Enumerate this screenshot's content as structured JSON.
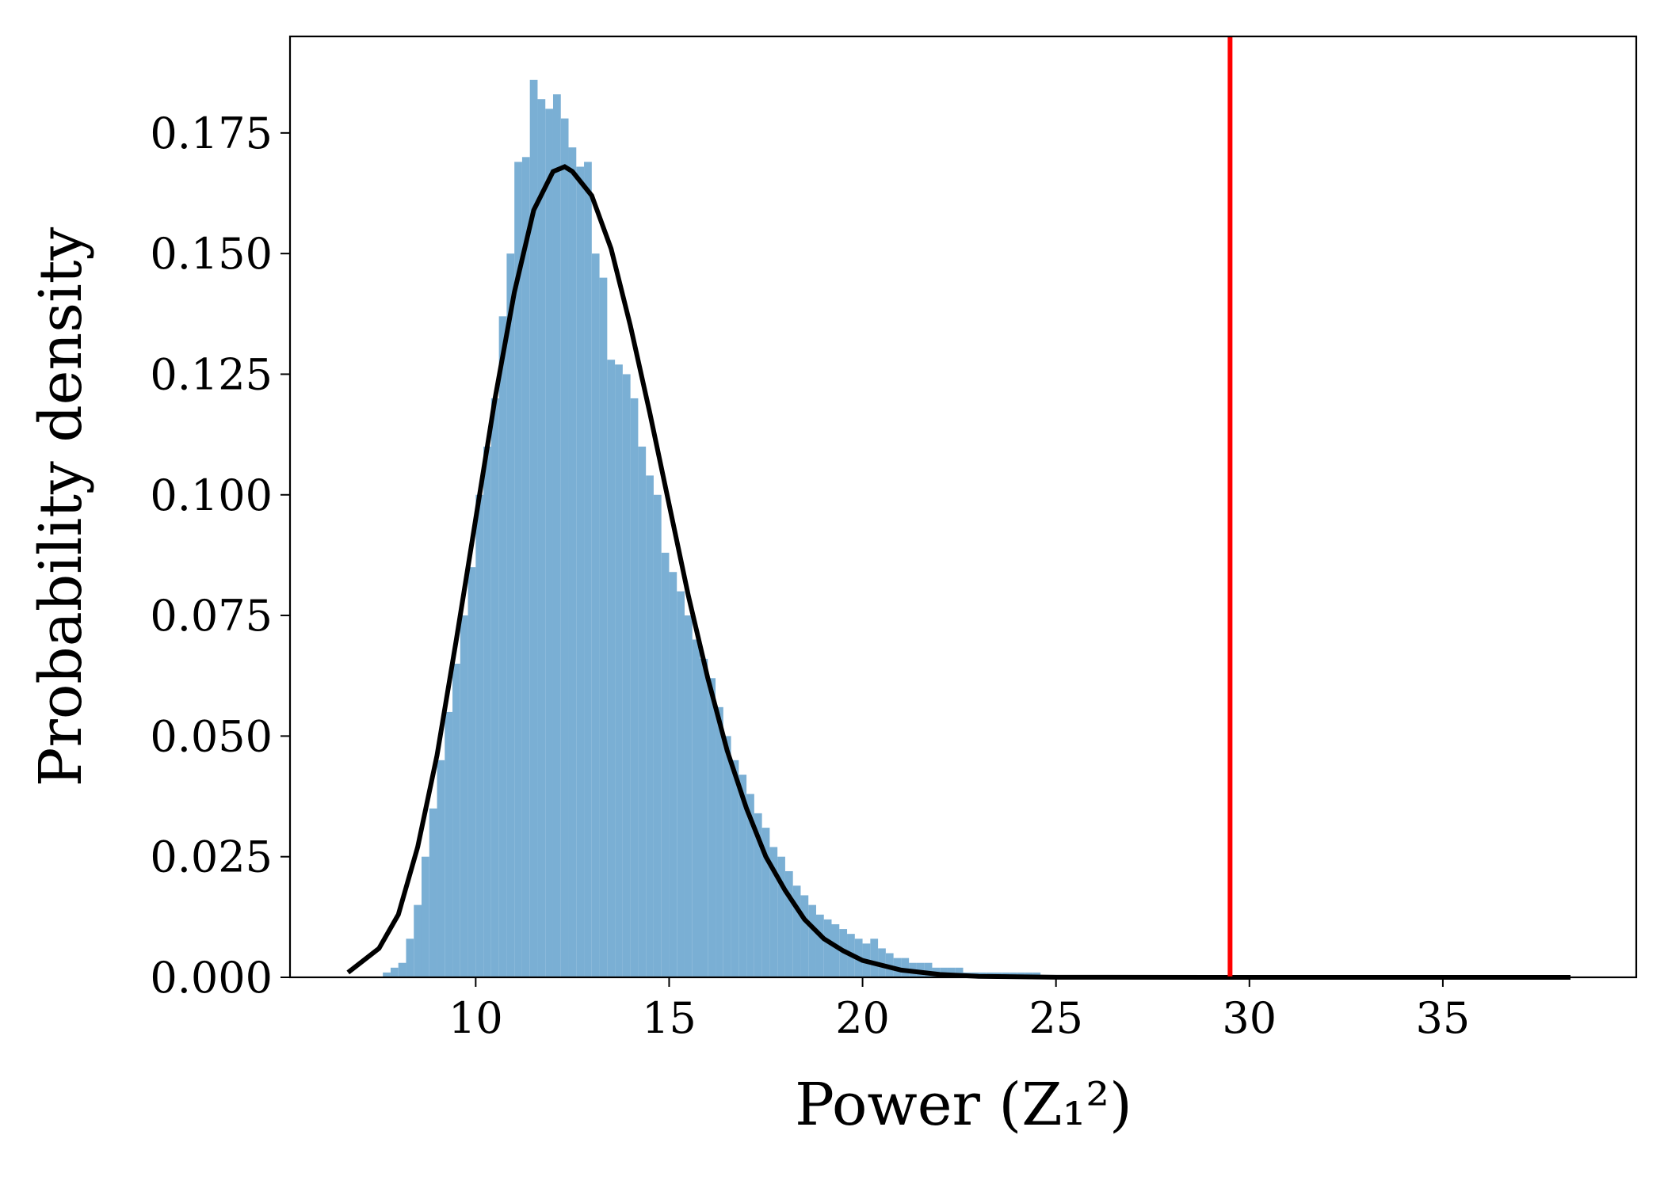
{
  "chart_data": {
    "type": "histogram",
    "xlabel": "Power (Z₁²)",
    "ylabel": "Probability density",
    "bins": [
      7.6,
      7.8,
      8.0,
      8.2,
      8.4,
      8.6,
      8.8,
      9.0,
      9.2,
      9.4,
      9.6,
      9.8,
      10.0,
      10.2,
      10.4,
      10.6,
      10.8,
      11.0,
      11.2,
      11.4,
      11.6,
      11.8,
      12.0,
      12.2,
      12.4,
      12.6,
      12.8,
      13.0,
      13.2,
      13.4,
      13.6,
      13.8,
      14.0,
      14.2,
      14.4,
      14.6,
      14.8,
      15.0,
      15.2,
      15.4,
      15.6,
      15.8,
      16.0,
      16.2,
      16.4,
      16.6,
      16.8,
      17.0,
      17.2,
      17.4,
      17.6,
      17.8,
      18.0,
      18.2,
      18.4,
      18.6,
      18.8,
      19.0,
      19.2,
      19.4,
      19.6,
      19.8,
      20.0,
      20.2,
      20.4,
      20.6,
      20.8,
      21.0,
      21.2,
      21.4,
      21.6,
      21.8,
      22.0,
      22.2,
      22.4,
      22.6,
      22.8,
      23.0,
      23.2,
      23.4,
      23.6,
      23.8,
      24.0,
      24.2,
      24.4,
      24.6,
      24.8,
      25.0
    ],
    "values": [
      0.001,
      0.002,
      0.003,
      0.008,
      0.015,
      0.025,
      0.035,
      0.045,
      0.055,
      0.065,
      0.075,
      0.085,
      0.1,
      0.11,
      0.12,
      0.137,
      0.15,
      0.169,
      0.17,
      0.186,
      0.182,
      0.18,
      0.183,
      0.178,
      0.172,
      0.168,
      0.169,
      0.15,
      0.145,
      0.128,
      0.127,
      0.125,
      0.12,
      0.11,
      0.104,
      0.1,
      0.088,
      0.084,
      0.08,
      0.075,
      0.07,
      0.066,
      0.062,
      0.056,
      0.05,
      0.045,
      0.042,
      0.038,
      0.034,
      0.031,
      0.027,
      0.025,
      0.022,
      0.019,
      0.017,
      0.015,
      0.013,
      0.012,
      0.011,
      0.01,
      0.009,
      0.008,
      0.007,
      0.008,
      0.006,
      0.005,
      0.004,
      0.004,
      0.003,
      0.003,
      0.003,
      0.002,
      0.002,
      0.002,
      0.002,
      0.001,
      0.001,
      0.001,
      0.001,
      0.001,
      0.001,
      0.001,
      0.001,
      0.001,
      0.001,
      0.0005,
      0.0005
    ],
    "color": "#7aafd4",
    "curve": {
      "color": "#000000",
      "x": [
        6.7,
        7.5,
        8.0,
        8.5,
        9.0,
        9.5,
        10.0,
        10.5,
        11.0,
        11.5,
        12.0,
        12.3,
        12.5,
        13.0,
        13.5,
        14.0,
        14.5,
        15.0,
        15.5,
        16.0,
        16.5,
        17.0,
        17.5,
        18.0,
        18.5,
        19.0,
        19.5,
        20.0,
        21.0,
        22.0,
        23.0,
        25.0,
        30.0,
        38.3
      ],
      "values": [
        0.001,
        0.006,
        0.013,
        0.027,
        0.046,
        0.07,
        0.095,
        0.12,
        0.142,
        0.159,
        0.167,
        0.168,
        0.167,
        0.162,
        0.151,
        0.135,
        0.117,
        0.098,
        0.079,
        0.062,
        0.047,
        0.035,
        0.025,
        0.018,
        0.012,
        0.008,
        0.0055,
        0.0035,
        0.0015,
        0.0006,
        0.0002,
        3e-05,
        0,
        0
      ]
    },
    "vline": {
      "x": 29.5,
      "color": "#ff0000"
    },
    "xlim": [
      5.2,
      40.0
    ],
    "ylim": [
      0,
      0.195
    ],
    "xticks": [
      10,
      15,
      20,
      25,
      30,
      35
    ],
    "yticks": [
      {
        "value": 0,
        "label": "0.000"
      },
      0.025,
      {
        "value": 0.05,
        "label": "0.050"
      },
      0.075,
      {
        "value": 0.1,
        "label": "0.100"
      },
      0.125,
      {
        "value": 0.15,
        "label": "0.150"
      },
      0.175
    ]
  }
}
